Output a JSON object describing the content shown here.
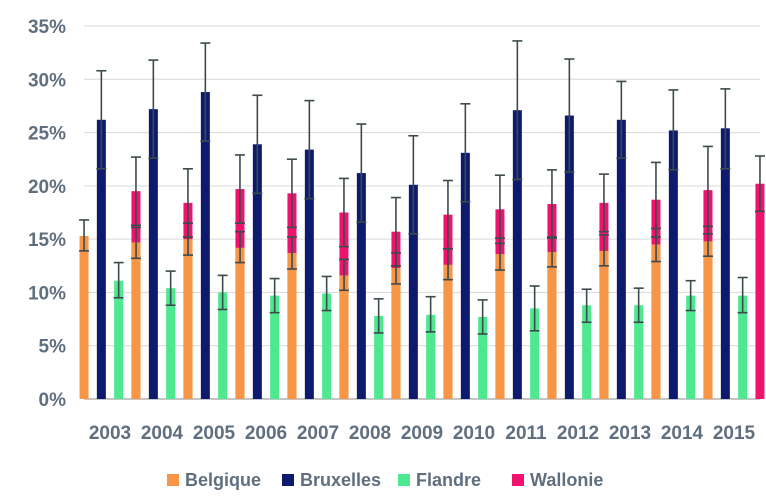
{
  "chart_data": {
    "type": "bar",
    "title": "",
    "xlabel": "",
    "ylabel": "",
    "ylim": [
      0,
      35
    ],
    "y_ticks": [
      {
        "value": 0,
        "label": "0%"
      },
      {
        "value": 5,
        "label": "5%"
      },
      {
        "value": 10,
        "label": "10%"
      },
      {
        "value": 15,
        "label": "15%"
      },
      {
        "value": 20,
        "label": "20%"
      },
      {
        "value": 25,
        "label": "25%"
      },
      {
        "value": 30,
        "label": "30%"
      },
      {
        "value": 35,
        "label": "35%"
      }
    ],
    "grid": true,
    "legend_position": "bottom",
    "categories": [
      "2003",
      "2004",
      "2005",
      "2006",
      "2007",
      "2008",
      "2009",
      "2010",
      "2011",
      "2012",
      "2013",
      "2014",
      "2015"
    ],
    "series": [
      {
        "name": "Belgique",
        "color": "#f79646",
        "values": [
          15.3,
          14.7,
          15.0,
          14.2,
          13.7,
          11.6,
          12.3,
          12.6,
          13.6,
          13.8,
          13.9,
          14.5,
          14.8
        ],
        "error_low": [
          13.9,
          13.2,
          13.5,
          12.8,
          12.2,
          10.2,
          10.8,
          11.2,
          12.1,
          12.4,
          12.5,
          12.9,
          13.4
        ],
        "error_high": [
          16.8,
          16.1,
          16.5,
          15.7,
          15.2,
          13.1,
          13.7,
          14.1,
          15.1,
          15.2,
          15.4,
          16.0,
          16.2
        ]
      },
      {
        "name": "Bruxelles",
        "color": "#0d1a6e",
        "values": [
          26.2,
          27.2,
          28.8,
          23.9,
          23.4,
          21.2,
          20.1,
          23.1,
          27.1,
          26.6,
          26.2,
          25.2,
          25.4
        ],
        "error_low": [
          21.6,
          22.6,
          24.2,
          19.3,
          18.8,
          16.6,
          15.5,
          18.5,
          20.6,
          21.3,
          22.6,
          21.5,
          21.6
        ],
        "error_high": [
          30.8,
          31.8,
          33.4,
          28.5,
          28.0,
          25.8,
          24.7,
          27.7,
          33.6,
          31.9,
          29.8,
          29.0,
          29.1
        ]
      },
      {
        "name": "Flandre",
        "color": "#4ee88f",
        "values": [
          11.1,
          10.4,
          10.0,
          9.7,
          9.9,
          7.8,
          7.9,
          7.7,
          8.5,
          8.8,
          8.8,
          9.7,
          9.7
        ],
        "error_low": [
          9.5,
          8.8,
          8.4,
          8.1,
          8.3,
          6.2,
          6.3,
          6.1,
          6.4,
          7.2,
          7.2,
          8.3,
          8.1
        ],
        "error_high": [
          12.8,
          12.0,
          11.6,
          11.3,
          11.5,
          9.4,
          9.6,
          9.3,
          10.6,
          10.3,
          10.4,
          11.1,
          11.4
        ]
      },
      {
        "name": "Wallonie",
        "color": "#f0136e",
        "values": [
          19.5,
          18.4,
          19.7,
          19.3,
          17.5,
          15.7,
          17.3,
          17.8,
          18.3,
          18.4,
          18.7,
          19.6,
          20.2
        ],
        "error_low": [
          16.3,
          15.2,
          16.5,
          16.1,
          14.3,
          12.5,
          14.1,
          14.6,
          15.1,
          15.7,
          15.2,
          15.5,
          17.6
        ],
        "error_high": [
          22.7,
          21.6,
          22.9,
          22.5,
          20.7,
          18.9,
          20.5,
          21.0,
          21.5,
          21.1,
          22.2,
          23.7,
          22.8
        ]
      }
    ]
  }
}
